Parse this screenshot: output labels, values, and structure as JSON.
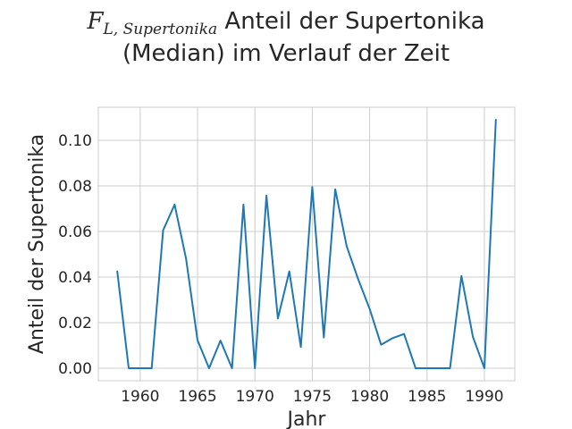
{
  "chart_data": {
    "type": "line",
    "title_math_main": "F",
    "title_math_sub": "L, Supertonika",
    "title_line1": "Anteil der Supertonika",
    "title_line2": "(Median) im Verlauf der Zeit",
    "xlabel": "Jahr",
    "ylabel": "Anteil der Supertonika",
    "xlim": [
      1956.35,
      1992.65
    ],
    "ylim": [
      -0.0055,
      0.1145
    ],
    "xticks": [
      1960,
      1965,
      1970,
      1975,
      1980,
      1985,
      1990
    ],
    "yticks": [
      0.0,
      0.02,
      0.04,
      0.06,
      0.08,
      0.1
    ],
    "ytick_labels": [
      "0.00",
      "0.02",
      "0.04",
      "0.06",
      "0.08",
      "0.10"
    ],
    "grid": true,
    "line_color": "#1f77b4",
    "grid_color": "#cccccc",
    "x": [
      1958,
      1959,
      1960,
      1961,
      1962,
      1963,
      1964,
      1965,
      1966,
      1967,
      1968,
      1969,
      1970,
      1971,
      1972,
      1973,
      1974,
      1975,
      1976,
      1977,
      1978,
      1979,
      1980,
      1981,
      1982,
      1983,
      1984,
      1985,
      1986,
      1987,
      1988,
      1989,
      1990,
      1991
    ],
    "y": [
      0.0425,
      0.0,
      0.0,
      0.0,
      0.0605,
      0.0718,
      0.048,
      0.0123,
      0.0,
      0.0121,
      0.0,
      0.0718,
      0.0,
      0.0757,
      0.0218,
      0.0425,
      0.0093,
      0.0795,
      0.0135,
      0.0785,
      0.0535,
      0.039,
      0.026,
      0.0103,
      0.0132,
      0.015,
      0.0,
      0.0,
      0.0,
      0.0,
      0.0405,
      0.0138,
      0.0,
      0.109
    ]
  }
}
